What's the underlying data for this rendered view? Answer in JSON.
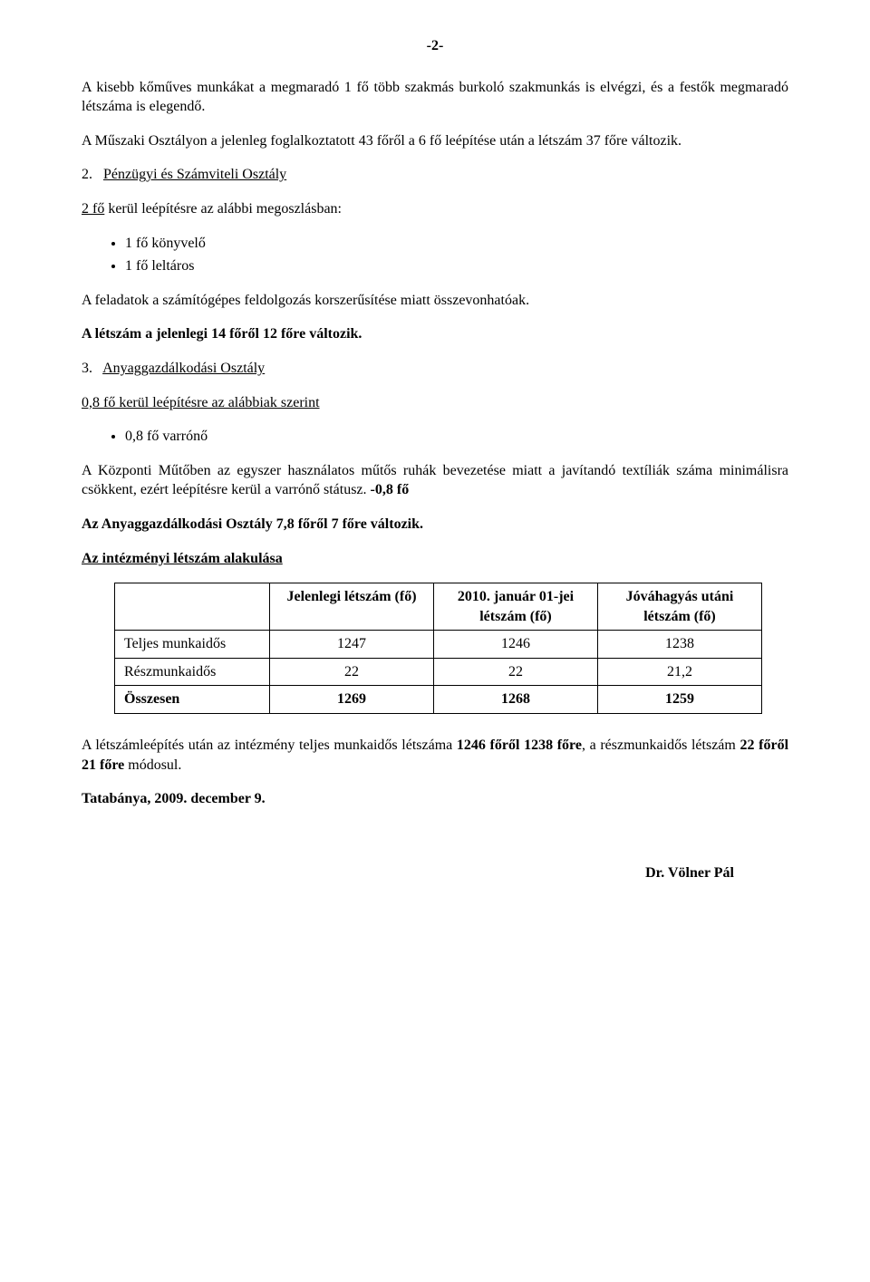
{
  "page_number": "-2-",
  "para1": "A kisebb kőműves munkákat a megmaradó 1 fő több szakmás burkoló szakmunkás is elvégzi, és a festők megmaradó létszáma is elegendő.",
  "para2": "A Műszaki Osztályon a jelenleg foglalkoztatott 43 főről a 6 fő leépítése után a létszám 37 főre változik.",
  "sec2": {
    "num": "2.",
    "title": "Pénzügyi és Számviteli Osztály",
    "line_a": "2 fő",
    "line_b": " kerül leépítésre az alábbi megoszlásban:",
    "items": [
      "1 fő könyvelő",
      "1 fő leltáros"
    ],
    "after": "A feladatok a számítógépes feldolgozás korszerűsítése miatt összevonhatóak.",
    "bold_after": "A létszám a jelenlegi 14 főről 12 főre változik."
  },
  "sec3": {
    "num": "3.",
    "title": "Anyaggazdálkodási Osztály",
    "line": "0,8 fő kerül leépítésre az alábbiak szerint",
    "items": [
      "0,8 fő varrónő"
    ],
    "para_a": "A Központi Műtőben az egyszer használatos műtős ruhák bevezetése miatt a javítandó textíliák száma minimálisra csökkent, ezért leépítésre kerül a varrónő státusz. ",
    "para_b_bold": "-0,8 fő",
    "bold_line": "Az Anyaggazdálkodási Osztály 7,8 főről 7 főre változik.",
    "sub_heading": "Az intézményi létszám alakulása"
  },
  "table": {
    "headers": [
      "",
      "Jelenlegi létszám (fő)",
      "2010. január 01-jei létszám (fő)",
      "Jóváhagyás utáni létszám (fő)"
    ],
    "rows": [
      {
        "label": "Teljes munkaidős",
        "c1": "1247",
        "c2": "1246",
        "c3": "1238"
      },
      {
        "label": "Részmunkaidős",
        "c1": "22",
        "c2": "22",
        "c3": "21,2"
      }
    ],
    "total": {
      "label": "Összesen",
      "c1": "1269",
      "c2": "1268",
      "c3": "1259"
    }
  },
  "closing": {
    "a": "A létszámleépítés után az intézmény teljes munkaidős létszáma ",
    "b": "1246 főről 1238 főre",
    "c": ", a részmunkaidős létszám ",
    "d": "22 főről 21 főre",
    "e": " módosul."
  },
  "dateline": "Tatabánya, 2009. december 9.",
  "signature": "Dr. Völner Pál"
}
